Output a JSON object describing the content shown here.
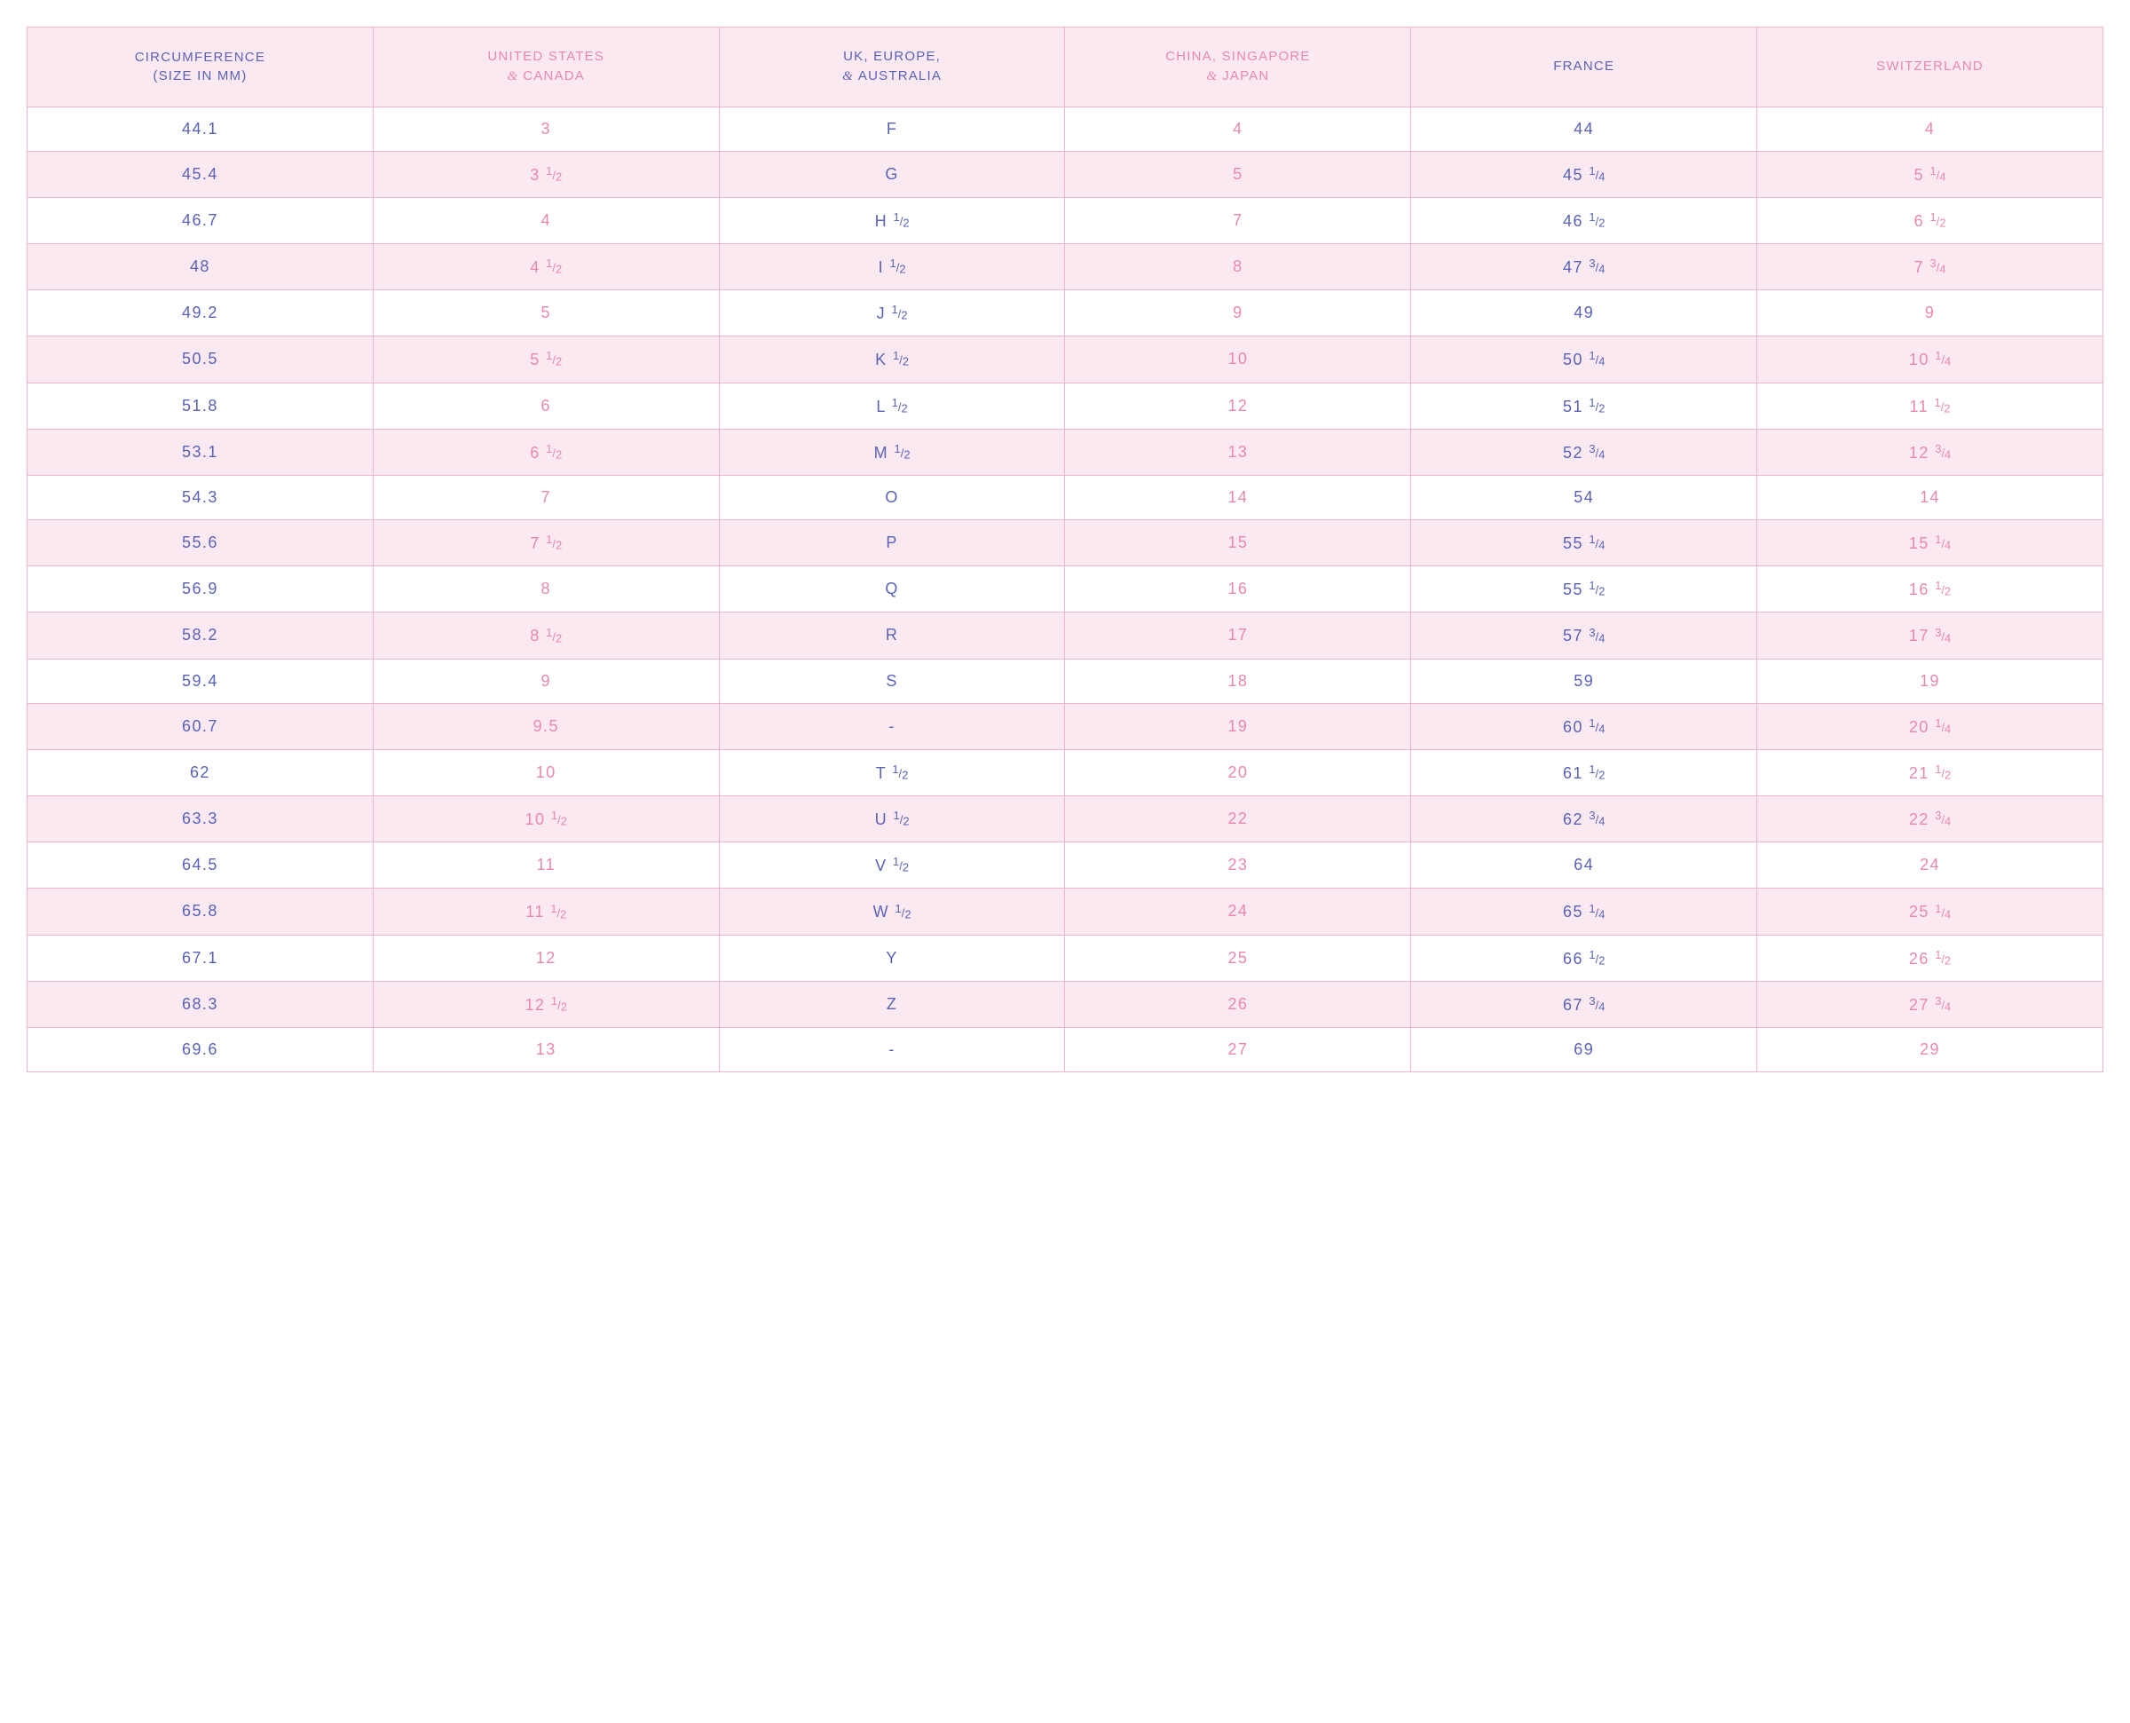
{
  "colors": {
    "blue": "#5962b6",
    "pink": "#e987b0",
    "border": "#f3b4d0",
    "header_bg": "#fbe9f1",
    "row_alt_bg": "#fbe9f1",
    "row_bg": "#ffffff"
  },
  "table": {
    "columns": [
      {
        "lines": [
          "CIRCUMFERENCE",
          "(SIZE IN MM)"
        ],
        "amp_prefix": [
          false,
          false
        ],
        "color": "blue"
      },
      {
        "lines": [
          "UNITED STATES",
          "CANADA"
        ],
        "amp_prefix": [
          false,
          true
        ],
        "color": "pink"
      },
      {
        "lines": [
          "UK, EUROPE,",
          "AUSTRALIA"
        ],
        "amp_prefix": [
          false,
          true
        ],
        "color": "blue"
      },
      {
        "lines": [
          "CHINA, SINGAPORE",
          "JAPAN"
        ],
        "amp_prefix": [
          false,
          true
        ],
        "color": "pink"
      },
      {
        "lines": [
          "FRANCE"
        ],
        "amp_prefix": [
          false
        ],
        "color": "blue"
      },
      {
        "lines": [
          "SWITZERLAND"
        ],
        "amp_prefix": [
          false
        ],
        "color": "pink"
      }
    ],
    "column_colors": [
      "blue",
      "pink",
      "blue",
      "pink",
      "blue",
      "pink"
    ],
    "rows": [
      [
        {
          "t": "44.1"
        },
        {
          "t": "3"
        },
        {
          "t": "F"
        },
        {
          "t": "4"
        },
        {
          "t": "44"
        },
        {
          "t": "4"
        }
      ],
      [
        {
          "t": "45.4"
        },
        {
          "t": "3 ",
          "f": "1/2"
        },
        {
          "t": "G"
        },
        {
          "t": "5"
        },
        {
          "t": "45 ",
          "f": "1/4"
        },
        {
          "t": "5 ",
          "f": "1/4"
        }
      ],
      [
        {
          "t": "46.7"
        },
        {
          "t": "4"
        },
        {
          "t": "H ",
          "f": "1/2"
        },
        {
          "t": "7"
        },
        {
          "t": "46 ",
          "f": "1/2"
        },
        {
          "t": "6 ",
          "f": "1/2"
        }
      ],
      [
        {
          "t": "48"
        },
        {
          "t": "4 ",
          "f": "1/2"
        },
        {
          "t": "I ",
          "f": "1/2"
        },
        {
          "t": "8"
        },
        {
          "t": "47 ",
          "f": "3/4"
        },
        {
          "t": "7 ",
          "f": "3/4"
        }
      ],
      [
        {
          "t": "49.2"
        },
        {
          "t": "5"
        },
        {
          "t": "J ",
          "f": "1/2"
        },
        {
          "t": "9"
        },
        {
          "t": "49"
        },
        {
          "t": "9"
        }
      ],
      [
        {
          "t": "50.5"
        },
        {
          "t": "5 ",
          "f": "1/2"
        },
        {
          "t": "K ",
          "f": "1/2"
        },
        {
          "t": "10"
        },
        {
          "t": "50 ",
          "f": "1/4"
        },
        {
          "t": "10 ",
          "f": "1/4"
        }
      ],
      [
        {
          "t": "51.8"
        },
        {
          "t": "6"
        },
        {
          "t": "L ",
          "f": "1/2"
        },
        {
          "t": "12"
        },
        {
          "t": "51 ",
          "f": "1/2"
        },
        {
          "t": "11 ",
          "f": "1/2"
        }
      ],
      [
        {
          "t": "53.1"
        },
        {
          "t": "6 ",
          "f": "1/2"
        },
        {
          "t": "M ",
          "f": "1/2"
        },
        {
          "t": "13"
        },
        {
          "t": "52 ",
          "f": "3/4"
        },
        {
          "t": "12 ",
          "f": "3/4"
        }
      ],
      [
        {
          "t": "54.3"
        },
        {
          "t": "7"
        },
        {
          "t": "O"
        },
        {
          "t": "14"
        },
        {
          "t": "54"
        },
        {
          "t": "14"
        }
      ],
      [
        {
          "t": "55.6"
        },
        {
          "t": "7 ",
          "f": "1/2"
        },
        {
          "t": "P"
        },
        {
          "t": "15"
        },
        {
          "t": "55 ",
          "f": "1/4"
        },
        {
          "t": "15  ",
          "f": "1/4"
        }
      ],
      [
        {
          "t": "56.9"
        },
        {
          "t": "8"
        },
        {
          "t": "Q"
        },
        {
          "t": "16"
        },
        {
          "t": "55 ",
          "f": "1/2"
        },
        {
          "t": "16 ",
          "f": "1/2"
        }
      ],
      [
        {
          "t": "58.2"
        },
        {
          "t": "8 ",
          "f": "1/2"
        },
        {
          "t": "R"
        },
        {
          "t": "17"
        },
        {
          "t": "57 ",
          "f": "3/4"
        },
        {
          "t": "17 ",
          "f": "3/4"
        }
      ],
      [
        {
          "t": "59.4"
        },
        {
          "t": "9"
        },
        {
          "t": "S"
        },
        {
          "t": "18"
        },
        {
          "t": "59"
        },
        {
          "t": "19"
        }
      ],
      [
        {
          "t": "60.7"
        },
        {
          "t": "9.5"
        },
        {
          "t": "-"
        },
        {
          "t": "19"
        },
        {
          "t": "60 ",
          "f": "1/4"
        },
        {
          "t": "20 ",
          "f": "1/4"
        }
      ],
      [
        {
          "t": "62"
        },
        {
          "t": "10"
        },
        {
          "t": "T ",
          "f": "1/2"
        },
        {
          "t": "20"
        },
        {
          "t": "61 ",
          "f": "1/2"
        },
        {
          "t": "21 ",
          "f": "1/2"
        }
      ],
      [
        {
          "t": "63.3"
        },
        {
          "t": "10 ",
          "f": "1/2"
        },
        {
          "t": "U ",
          "f": "1/2"
        },
        {
          "t": "22"
        },
        {
          "t": "62 ",
          "f": "3/4"
        },
        {
          "t": "22 ",
          "f": "3/4"
        }
      ],
      [
        {
          "t": "64.5"
        },
        {
          "t": "11"
        },
        {
          "t": "V ",
          "f": "1/2"
        },
        {
          "t": "23"
        },
        {
          "t": "64"
        },
        {
          "t": "24"
        }
      ],
      [
        {
          "t": "65.8"
        },
        {
          "t": "11 ",
          "f": "1/2"
        },
        {
          "t": "W ",
          "f": "1/2"
        },
        {
          "t": "24"
        },
        {
          "t": "65 ",
          "f": "1/4"
        },
        {
          "t": "25 ",
          "f": "1/4"
        }
      ],
      [
        {
          "t": "67.1"
        },
        {
          "t": "12"
        },
        {
          "t": "Y"
        },
        {
          "t": "25"
        },
        {
          "t": "66 ",
          "f": "1/2"
        },
        {
          "t": "26 ",
          "f": "1/2"
        }
      ],
      [
        {
          "t": "68.3"
        },
        {
          "t": "12 ",
          "f": "1/2"
        },
        {
          "t": "Z"
        },
        {
          "t": "26"
        },
        {
          "t": "67 ",
          "f": "3/4"
        },
        {
          "t": "27 ",
          "f": "3/4"
        }
      ],
      [
        {
          "t": "69.6"
        },
        {
          "t": "13"
        },
        {
          "t": "-"
        },
        {
          "t": "27"
        },
        {
          "t": "69"
        },
        {
          "t": "29"
        }
      ]
    ]
  }
}
